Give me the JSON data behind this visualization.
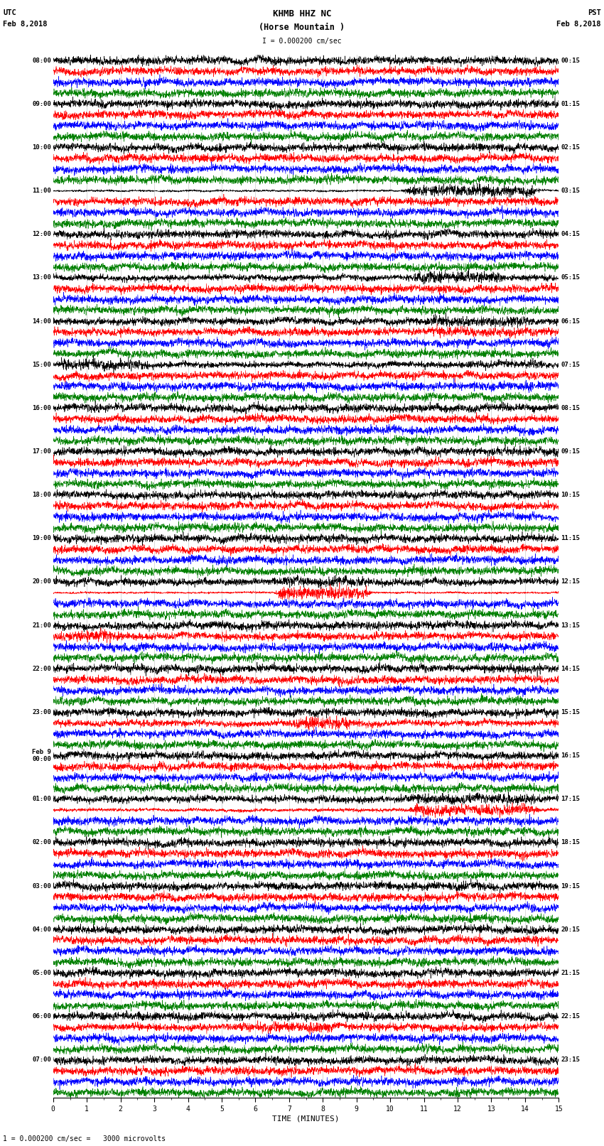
{
  "title_line1": "KHMB HHZ NC",
  "title_line2": "(Horse Mountain )",
  "scale_label": "I = 0.000200 cm/sec",
  "bottom_label": "1 = 0.000200 cm/sec =   3000 microvolts",
  "xlabel": "TIME (MINUTES)",
  "utc_label": "UTC",
  "pst_label": "PST",
  "date_left": "Feb 8,2018",
  "date_right": "Feb 8,2018",
  "left_times": [
    "08:00",
    "09:00",
    "10:00",
    "11:00",
    "12:00",
    "13:00",
    "14:00",
    "15:00",
    "16:00",
    "17:00",
    "18:00",
    "19:00",
    "20:00",
    "21:00",
    "22:00",
    "23:00",
    "Feb 9\n00:00",
    "01:00",
    "02:00",
    "03:00",
    "04:00",
    "05:00",
    "06:00",
    "07:00"
  ],
  "right_times": [
    "00:15",
    "01:15",
    "02:15",
    "03:15",
    "04:15",
    "05:15",
    "06:15",
    "07:15",
    "08:15",
    "09:15",
    "10:15",
    "11:15",
    "12:15",
    "13:15",
    "14:15",
    "15:15",
    "16:15",
    "17:15",
    "18:15",
    "19:15",
    "20:15",
    "21:15",
    "22:15",
    "23:15"
  ],
  "colors": [
    "black",
    "red",
    "blue",
    "green"
  ],
  "num_rows": 24,
  "traces_per_row": 4,
  "minutes_per_row": 15,
  "figwidth": 8.5,
  "figheight": 16.13,
  "bg_color": "white",
  "noise_seed": 42
}
